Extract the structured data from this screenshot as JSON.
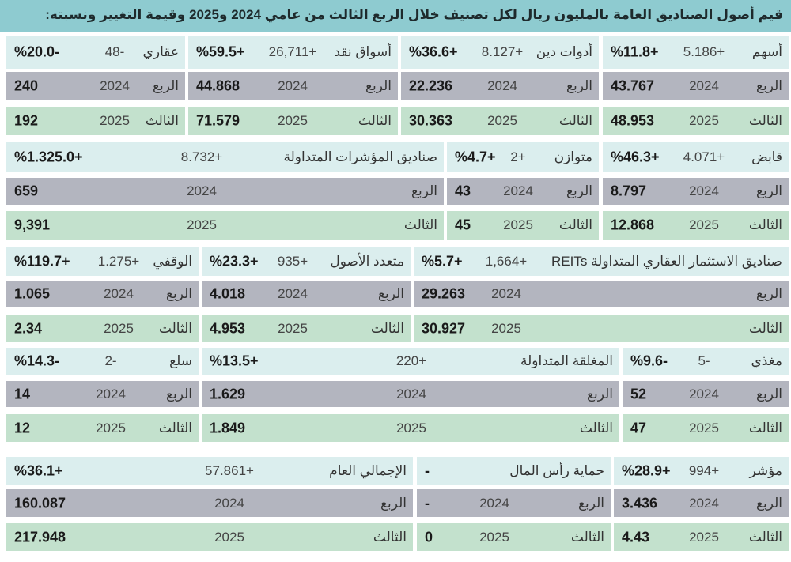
{
  "title": "قيم أصول الصناديق العامة بالمليون ريال لكل تصنيف خلال الربع الثالث من عامي 2024 و2025 وقيمة التغيير ونسبته:",
  "colors": {
    "title_bg": "#8ecbd0",
    "header_bg": "#dbeeee",
    "row_2024_bg": "#b3b5bf",
    "row_2025_bg": "#c3e1cd"
  },
  "bands": [
    {
      "cells": [
        {
          "name": "أسهم",
          "change": "5.186+",
          "pct": "%11.8+",
          "q24": "الربع",
          "y24": "2024",
          "v24": "43.767",
          "q25": "الثالث",
          "y25": "2025",
          "v25": "48.953"
        },
        {
          "name": "أدوات دين",
          "change": "8.127+",
          "pct": "%36.6+",
          "q24": "الربع",
          "y24": "2024",
          "v24": "22.236",
          "q25": "الثالث",
          "y25": "2025",
          "v25": "30.363"
        },
        {
          "name": "أسواق نقد",
          "change": "26,711+",
          "pct": "%59.5+",
          "q24": "الربع",
          "y24": "2024",
          "v24": "44.868",
          "q25": "الثالث",
          "y25": "2025",
          "v25": "71.579"
        },
        {
          "name": "عقاري",
          "change": "48-",
          "pct": "%20.0-",
          "q24": "الربع",
          "y24": "2024",
          "v24": "240",
          "q25": "الثالث",
          "y25": "2025",
          "v25": "192"
        }
      ]
    },
    {
      "cells": [
        {
          "name": "قابض",
          "change": "4.071+",
          "pct": "%46.3+",
          "q24": "الربع",
          "y24": "2024",
          "v24": "8.797",
          "q25": "الثالث",
          "y25": "2025",
          "v25": "12.868"
        },
        {
          "name": "متوازن",
          "change": "2+",
          "pct": "%4.7+",
          "q24": "الربع",
          "y24": "2024",
          "v24": "43",
          "q25": "الثالث",
          "y25": "2025",
          "v25": "45"
        },
        {
          "name": "صناديق المؤشرات المتداولة",
          "change": "8.732+",
          "pct": "%1.325.0+",
          "q24": "الربع",
          "y24": "2024",
          "v24": "659",
          "q25": "الثالث",
          "y25": "2025",
          "v25": "9,391"
        }
      ]
    },
    {
      "cells": [
        {
          "name": "صناديق الاستثمار العقاري المتداولة REITs",
          "change": "1,664+",
          "pct": "%5.7+",
          "q24": "الربع",
          "y24": "2024",
          "v24": "29.263",
          "q25": "الثالث",
          "y25": "2025",
          "v25": "30.927"
        },
        {
          "name": "متعدد الأصول",
          "change": "935+",
          "pct": "%23.3+",
          "q24": "الربع",
          "y24": "2024",
          "v24": "4.018",
          "q25": "الثالث",
          "y25": "2025",
          "v25": "4.953"
        },
        {
          "name": "الوقفي",
          "change": "1.275+",
          "pct": "%119.7+",
          "q24": "الربع",
          "y24": "2024",
          "v24": "1.065",
          "q25": "الثالث",
          "y25": "2025",
          "v25": "2.34"
        }
      ]
    },
    {
      "cells": [
        {
          "name": "مغذي",
          "change": "5-",
          "pct": "%9.6-",
          "q24": "الربع",
          "y24": "2024",
          "v24": "52",
          "q25": "الثالث",
          "y25": "2025",
          "v25": "47"
        },
        {
          "name": "المغلقة المتداولة",
          "change": "220+",
          "pct": "%13.5+",
          "q24": "الربع",
          "y24": "2024",
          "v24": "1.629",
          "q25": "الثالث",
          "y25": "2025",
          "v25": "1.849"
        },
        {
          "name": "سلع",
          "change": "2-",
          "pct": "%14.3-",
          "q24": "الربع",
          "y24": "2024",
          "v24": "14",
          "q25": "الثالث",
          "y25": "2025",
          "v25": "12"
        }
      ]
    },
    {
      "cells": [
        {
          "name": "مؤشر",
          "change": "994+",
          "pct": "%28.9+",
          "q24": "الربع",
          "y24": "2024",
          "v24": "3.436",
          "q25": "الثالث",
          "y25": "2025",
          "v25": "4.43"
        },
        {
          "name": "حماية رأس المال",
          "change": "",
          "pct": "-",
          "q24": "الربع",
          "y24": "2024",
          "v24": "-",
          "q25": "الثالث",
          "y25": "2025",
          "v25": "0"
        },
        {
          "name": "الإجمالي العام",
          "change": "57.861+",
          "pct": "%36.1+",
          "q24": "الربع",
          "y24": "2024",
          "v24": "160.087",
          "q25": "الثالث",
          "y25": "2025",
          "v25": "217.948"
        }
      ]
    }
  ]
}
